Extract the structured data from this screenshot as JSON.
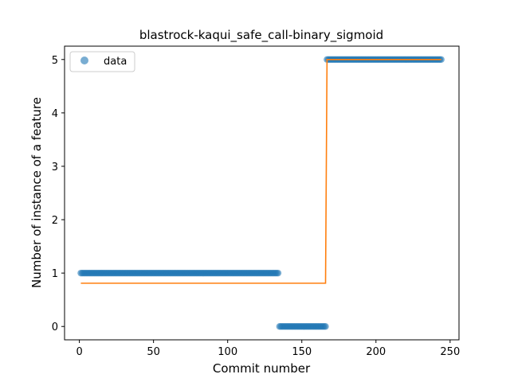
{
  "chart_data": {
    "type": "scatter",
    "title": "blastrock-kaqui_safe_call-binary_sigmoid",
    "xlabel": "Commit number",
    "ylabel": "Number of instance of a feature",
    "xlim": [
      -10,
      256
    ],
    "ylim": [
      -0.25,
      5.25
    ],
    "xticks": [
      0,
      50,
      100,
      150,
      200,
      250
    ],
    "yticks": [
      0,
      1,
      2,
      3,
      4,
      5
    ],
    "legend": {
      "position": "top-left",
      "entries": [
        "data"
      ]
    },
    "grid": false,
    "series": [
      {
        "name": "data",
        "kind": "points",
        "color": "#1f77b4",
        "segments": [
          {
            "x_from": 1,
            "x_to": 134,
            "y": 1
          },
          {
            "x_from": 135,
            "x_to": 166,
            "y": 0
          },
          {
            "x_from": 167,
            "x_to": 244,
            "y": 5
          }
        ]
      },
      {
        "kind": "line",
        "color": "#ff7f0e",
        "points": [
          [
            1,
            0.81
          ],
          [
            166,
            0.81
          ],
          [
            167,
            5.0
          ],
          [
            244,
            5.0
          ]
        ]
      }
    ]
  }
}
